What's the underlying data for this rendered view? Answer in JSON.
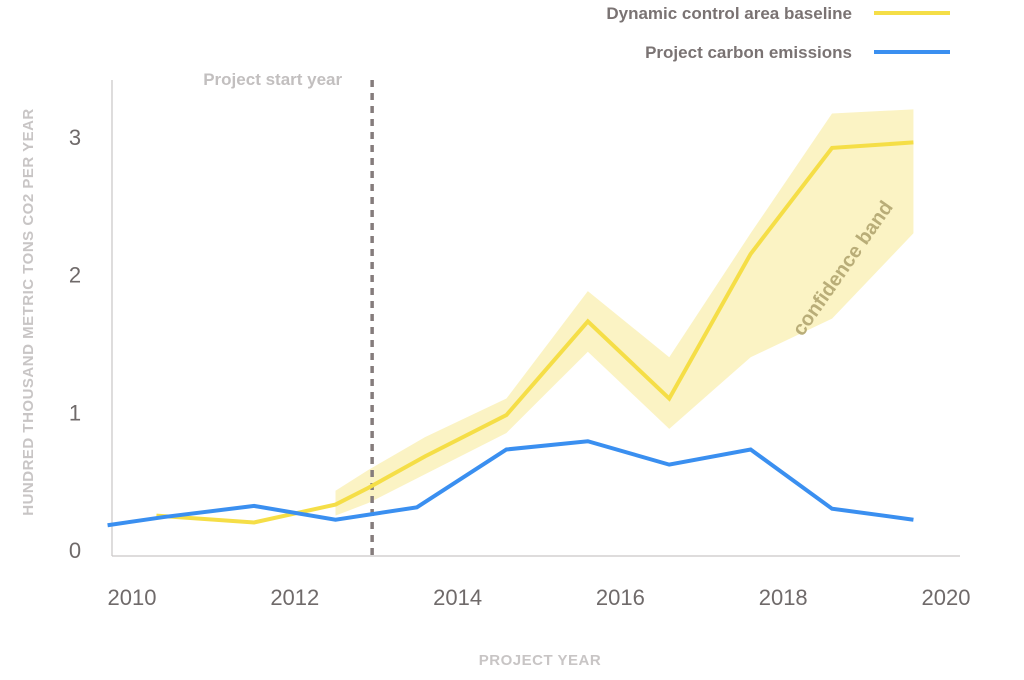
{
  "chart_data": {
    "type": "line",
    "xlabel": "PROJECT YEAR",
    "ylabel": "HUNDRED THOUSAND METRIC TONS CO2 PER YEAR",
    "xlim": [
      2009.7,
      2020.2
    ],
    "ylim": [
      0,
      3.2
    ],
    "x_ticks": [
      2010,
      2012,
      2014,
      2016,
      2018,
      2020
    ],
    "y_ticks": [
      0,
      1,
      2,
      3
    ],
    "grid": false,
    "legend_position": "top-right",
    "series": [
      {
        "name": "Dynamic control area baseline",
        "color": "#f5de47",
        "x": [
          2010.3,
          2011.5,
          2012.5,
          2012.9,
          2013.6,
          2014.6,
          2015.6,
          2016.6,
          2017.6,
          2018.6,
          2019.6
        ],
        "y": [
          0.25,
          0.2,
          0.33,
          0.45,
          0.68,
          0.98,
          1.66,
          1.1,
          2.15,
          2.92,
          2.96
        ]
      },
      {
        "name": "Project carbon emissions",
        "color": "#3a8ff0",
        "x": [
          2009.7,
          2010.4,
          2011.5,
          2012.5,
          2013.5,
          2014.6,
          2015.6,
          2016.6,
          2017.6,
          2018.6,
          2019.6
        ],
        "y": [
          0.18,
          0.24,
          0.32,
          0.22,
          0.31,
          0.73,
          0.79,
          0.62,
          0.73,
          0.3,
          0.22
        ]
      }
    ],
    "confidence_band": {
      "label": "confidence band",
      "color": "#fbf3c4",
      "x": [
        2012.5,
        2012.9,
        2013.6,
        2014.6,
        2015.6,
        2016.6,
        2017.6,
        2018.6,
        2019.6
      ],
      "upper": [
        0.43,
        0.58,
        0.82,
        1.1,
        1.88,
        1.4,
        2.3,
        3.17,
        3.2
      ],
      "lower": [
        0.25,
        0.34,
        0.55,
        0.85,
        1.44,
        0.88,
        1.4,
        1.68,
        2.3
      ]
    },
    "annotations": [
      {
        "text": "Project start year",
        "x": 2012.95,
        "style": "dashed-vertical-line",
        "color": "#857c7c"
      }
    ]
  }
}
